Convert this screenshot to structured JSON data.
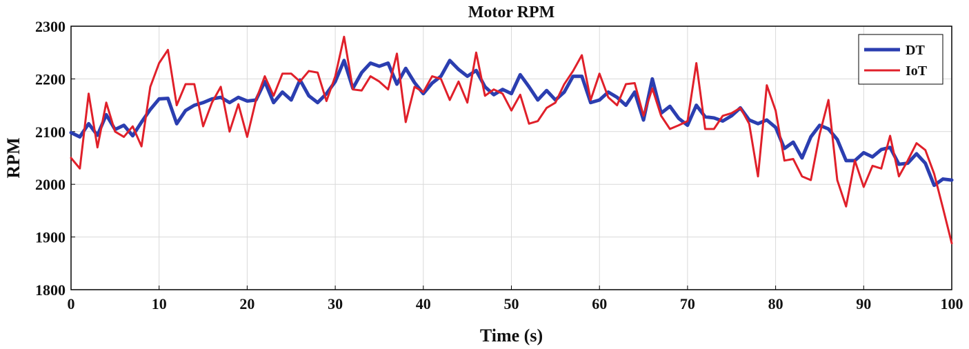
{
  "chart_data": {
    "type": "line",
    "title": "Motor RPM",
    "xlabel": "Time (s)",
    "ylabel": "RPM",
    "xlim": [
      0,
      100
    ],
    "ylim": [
      1800,
      2300
    ],
    "xticks": [
      0,
      10,
      20,
      30,
      40,
      50,
      60,
      70,
      80,
      90,
      100
    ],
    "yticks": [
      1800,
      1900,
      2000,
      2100,
      2200,
      2300
    ],
    "grid": true,
    "legend_position": "top-right",
    "series": [
      {
        "name": "DT",
        "color": "#2b3eb0",
        "x": [
          0,
          1,
          2,
          3,
          4,
          5,
          6,
          7,
          8,
          9,
          10,
          11,
          12,
          13,
          14,
          15,
          16,
          17,
          18,
          19,
          20,
          21,
          22,
          23,
          24,
          25,
          26,
          27,
          28,
          29,
          30,
          31,
          32,
          33,
          34,
          35,
          36,
          37,
          38,
          39,
          40,
          41,
          42,
          43,
          44,
          45,
          46,
          47,
          48,
          49,
          50,
          51,
          52,
          53,
          54,
          55,
          56,
          57,
          58,
          59,
          60,
          61,
          62,
          63,
          64,
          65,
          66,
          67,
          68,
          69,
          70,
          71,
          72,
          73,
          74,
          75,
          76,
          77,
          78,
          79,
          80,
          81,
          82,
          83,
          84,
          85,
          86,
          87,
          88,
          89,
          90,
          91,
          92,
          93,
          94,
          95,
          96,
          97,
          98,
          99,
          100
        ],
        "values": [
          2098,
          2090,
          2115,
          2093,
          2132,
          2104,
          2112,
          2092,
          2118,
          2142,
          2162,
          2163,
          2115,
          2140,
          2150,
          2155,
          2162,
          2165,
          2155,
          2165,
          2158,
          2160,
          2195,
          2155,
          2175,
          2160,
          2198,
          2168,
          2155,
          2172,
          2195,
          2235,
          2182,
          2212,
          2230,
          2224,
          2230,
          2190,
          2220,
          2193,
          2172,
          2192,
          2205,
          2235,
          2218,
          2205,
          2216,
          2185,
          2170,
          2180,
          2172,
          2208,
          2185,
          2160,
          2178,
          2160,
          2175,
          2205,
          2205,
          2155,
          2160,
          2175,
          2165,
          2150,
          2175,
          2122,
          2200,
          2135,
          2148,
          2125,
          2112,
          2150,
          2128,
          2126,
          2120,
          2130,
          2145,
          2122,
          2115,
          2122,
          2108,
          2068,
          2080,
          2050,
          2090,
          2112,
          2105,
          2085,
          2045,
          2045,
          2060,
          2052,
          2066,
          2070,
          2038,
          2040,
          2058,
          2040,
          1998,
          2010,
          2008
        ]
      },
      {
        "name": "IoT",
        "color": "#e0202a",
        "x": [
          0,
          1,
          2,
          3,
          4,
          5,
          6,
          7,
          8,
          9,
          10,
          11,
          12,
          13,
          14,
          15,
          16,
          17,
          18,
          19,
          20,
          21,
          22,
          23,
          24,
          25,
          26,
          27,
          28,
          29,
          30,
          31,
          32,
          33,
          34,
          35,
          36,
          37,
          38,
          39,
          40,
          41,
          42,
          43,
          44,
          45,
          46,
          47,
          48,
          49,
          50,
          51,
          52,
          53,
          54,
          55,
          56,
          57,
          58,
          59,
          60,
          61,
          62,
          63,
          64,
          65,
          66,
          67,
          68,
          69,
          70,
          71,
          72,
          73,
          74,
          75,
          76,
          77,
          78,
          79,
          80,
          81,
          82,
          83,
          84,
          85,
          86,
          87,
          88,
          89,
          90,
          91,
          92,
          93,
          94,
          95,
          96,
          97,
          98,
          99,
          100
        ],
        "values": [
          2050,
          2030,
          2172,
          2070,
          2155,
          2100,
          2090,
          2110,
          2072,
          2185,
          2230,
          2255,
          2150,
          2190,
          2190,
          2110,
          2155,
          2185,
          2100,
          2152,
          2090,
          2160,
          2205,
          2168,
          2210,
          2210,
          2195,
          2215,
          2212,
          2158,
          2205,
          2280,
          2180,
          2178,
          2205,
          2195,
          2180,
          2248,
          2118,
          2185,
          2175,
          2205,
          2200,
          2160,
          2195,
          2155,
          2250,
          2168,
          2180,
          2172,
          2140,
          2170,
          2115,
          2120,
          2145,
          2155,
          2190,
          2215,
          2245,
          2160,
          2210,
          2165,
          2150,
          2190,
          2192,
          2130,
          2182,
          2130,
          2105,
          2112,
          2120,
          2230,
          2105,
          2105,
          2130,
          2135,
          2145,
          2115,
          2015,
          2188,
          2140,
          2045,
          2048,
          2015,
          2008,
          2095,
          2160,
          2008,
          1958,
          2045,
          1995,
          2035,
          2030,
          2092,
          2015,
          2045,
          2078,
          2065,
          2020,
          1955,
          1888
        ]
      }
    ]
  }
}
